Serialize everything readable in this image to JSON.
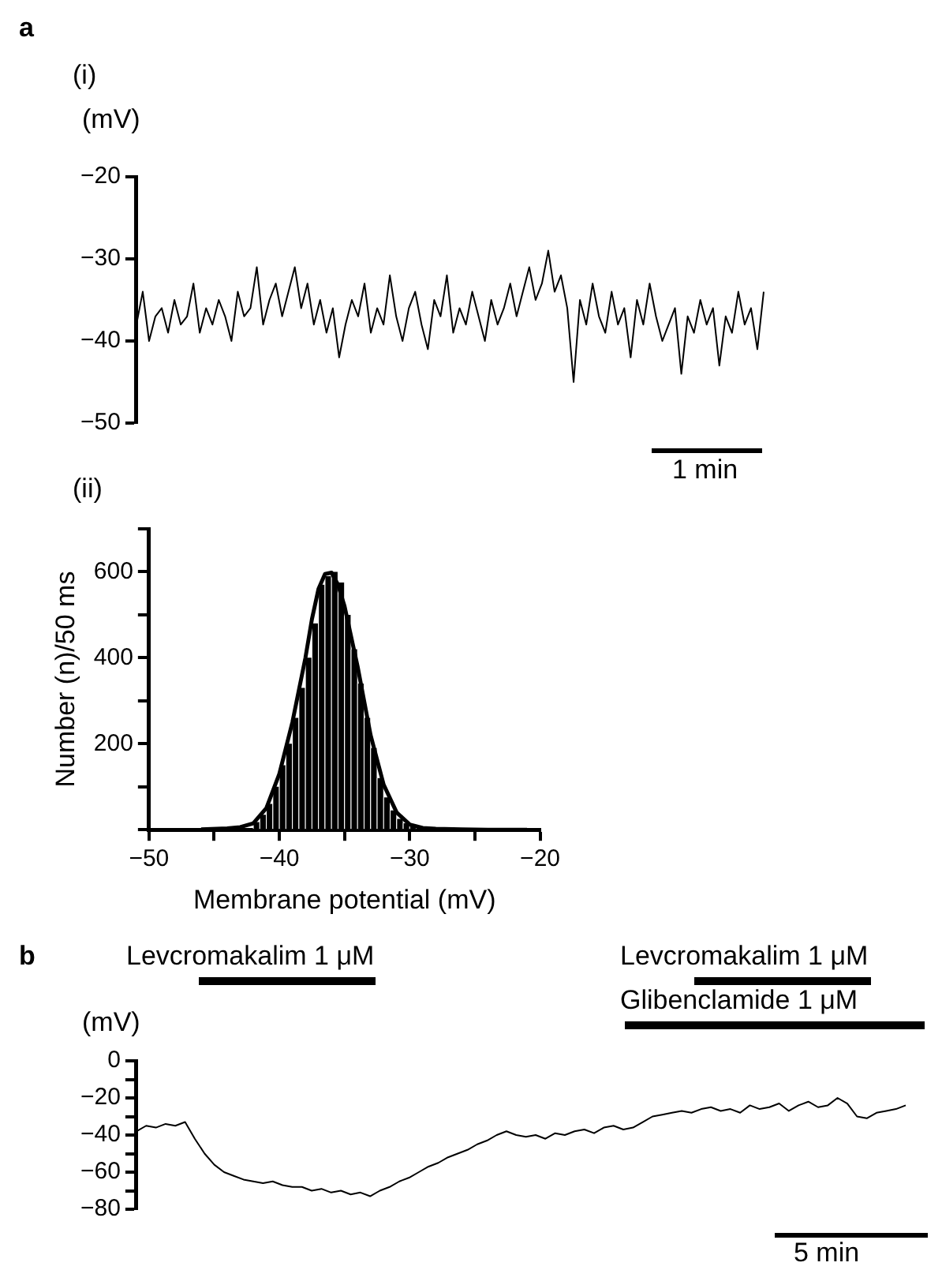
{
  "chart_data": [
    {
      "type": "line",
      "title": "(i)",
      "ylabel": "(mV)",
      "annotations": [
        "a",
        "1 min"
      ],
      "ylim": [
        -50,
        -20
      ],
      "yticks": [
        -20,
        -30,
        -40,
        -50
      ],
      "tick_labels": "y",
      "grid": false,
      "legend": false,
      "marker": "none",
      "categories": [
        null,
        null,
        null,
        null,
        null,
        null,
        null,
        null,
        null,
        null,
        null,
        null,
        null,
        null,
        null,
        null,
        null,
        null,
        null,
        null,
        null,
        null,
        null,
        null,
        null,
        null,
        null,
        null,
        null,
        null,
        null,
        null,
        null,
        null,
        null,
        null,
        null,
        null,
        null,
        null,
        null,
        null,
        null,
        null,
        null,
        null,
        null,
        null,
        null,
        null,
        null,
        null,
        null,
        null,
        null,
        null,
        null,
        null,
        null,
        null,
        null,
        null,
        null,
        null,
        null,
        null,
        null,
        null,
        null,
        null,
        null,
        null,
        null,
        null,
        null,
        null,
        null,
        null,
        null,
        null,
        null,
        null,
        null,
        null,
        null,
        null,
        null,
        null,
        null,
        null,
        null,
        null,
        null,
        null,
        null,
        null,
        null,
        null,
        null,
        null
      ],
      "series": [
        {
          "color": "#000000",
          "values": [
            -38,
            -34,
            -40,
            -37,
            -36,
            -39,
            -35,
            -38,
            -37,
            -33,
            -39,
            -36,
            -38,
            -35,
            -37,
            -40,
            -34,
            -37,
            -36,
            -31,
            -38,
            -35,
            -33,
            -37,
            -34,
            -31,
            -36,
            -33,
            -38,
            -35,
            -39,
            -36,
            -42,
            -38,
            -35,
            -37,
            -33,
            -39,
            -36,
            -38,
            -32,
            -37,
            -40,
            -36,
            -34,
            -38,
            -41,
            -35,
            -37,
            -32,
            -39,
            -36,
            -38,
            -34,
            -37,
            -40,
            -35,
            -38,
            -36,
            -33,
            -37,
            -34,
            -31,
            -35,
            -33,
            -29,
            -34,
            -32,
            -36,
            -45,
            -35,
            -38,
            -33,
            -37,
            -39,
            -34,
            -38,
            -36,
            -42,
            -35,
            -38,
            -33,
            -37,
            -40,
            -38,
            -36,
            -44,
            -37,
            -39,
            -35,
            -38,
            -36,
            -43,
            -37,
            -39,
            -34,
            -38,
            -36,
            -41,
            -34
          ]
        }
      ]
    },
    {
      "type": "histogram",
      "title": "(ii)",
      "xlabel": "Membrane potential (mV)",
      "ylabel": "Number (n)/50 ms",
      "grid": false,
      "legend": false,
      "xlim": [
        -50,
        -20
      ],
      "xticks": [
        -50,
        {
          "value": -45,
          "label": null
        },
        -40,
        {
          "value": -35,
          "label": null
        },
        -30,
        {
          "value": -25,
          "label": null
        },
        -20
      ],
      "ylim": [
        0,
        700
      ],
      "yticks": [
        {
          "value": 0,
          "label": null
        },
        {
          "value": 100,
          "label": null
        },
        200,
        {
          "value": 300,
          "label": null
        },
        400,
        {
          "value": 500,
          "label": null
        },
        600,
        {
          "value": 700,
          "label": null
        }
      ],
      "bins": [
        -46,
        -45.5,
        -45,
        -44.5,
        -44,
        -43.5,
        -43,
        -42.5,
        -42,
        -41.5,
        -41,
        -40.5,
        -40,
        -39.5,
        -39,
        -38.5,
        -38,
        -37.5,
        -37,
        -36.5,
        -36,
        -35.5,
        -35,
        -34.5,
        -34,
        -33.5,
        -33,
        -32.5,
        -32,
        -31.5,
        -31,
        -30.5,
        -30,
        -29.5,
        -29,
        -28.5,
        -28,
        -27.5
      ],
      "series": [
        {
          "type": "histogram",
          "color": "#000000",
          "values": [
            0,
            1,
            2,
            2,
            3,
            null,
            null,
            null,
            18,
            35,
            60,
            100,
            150,
            200,
            260,
            330,
            400,
            480,
            570,
            590,
            600,
            575,
            500,
            420,
            340,
            260,
            190,
            120,
            75,
            45,
            25,
            15,
            8,
            null,
            3,
            2,
            1
          ]
        },
        {
          "type": "line",
          "color": "#000000",
          "x": [
            -46,
            -44,
            -43,
            -42,
            -41,
            -40,
            -39,
            -38,
            -37.5,
            -37,
            -36.5,
            -36,
            -35.5,
            -35,
            -34,
            -33,
            -32,
            -31,
            -30,
            -29,
            -28,
            -26,
            -24,
            -22,
            -21
          ],
          "values": [
            1,
            3,
            6,
            15,
            50,
            130,
            250,
            400,
            490,
            560,
            595,
            598,
            570,
            520,
            380,
            220,
            105,
            40,
            12,
            4,
            2,
            1,
            0,
            0,
            0
          ]
        }
      ]
    },
    {
      "type": "line",
      "ylabel": "(mV)",
      "annotations": [
        "b",
        "Levcromakalim 1 μM",
        "Levcromakalim 1 μM",
        "Glibenclamide 1 μM",
        "5 min"
      ],
      "ylim": [
        -80,
        0
      ],
      "yticks": [
        0,
        {
          "value": -10,
          "label": null
        },
        -20,
        {
          "value": -30,
          "label": null
        },
        -40,
        {
          "value": -50,
          "label": null
        },
        -60,
        {
          "value": -70,
          "label": null
        },
        -80
      ],
      "tick_labels": "y",
      "grid": false,
      "legend": false,
      "marker": "none",
      "categories": [
        null,
        null,
        null,
        null,
        null,
        null,
        null,
        null,
        null,
        null,
        null,
        null,
        null,
        null,
        null,
        null,
        null,
        null,
        null,
        null,
        null,
        null,
        null,
        null,
        null,
        null,
        null,
        null,
        null,
        null,
        null,
        null,
        null,
        null,
        null,
        null,
        null,
        null,
        null,
        null,
        null,
        null,
        null,
        null,
        null,
        null,
        null,
        null,
        null,
        null,
        null,
        null,
        null,
        null,
        null,
        null,
        null,
        null,
        null,
        null,
        null,
        null,
        null,
        null,
        null,
        null,
        null,
        null,
        null,
        null,
        null,
        null,
        null,
        null,
        null,
        null,
        null,
        null,
        null,
        null
      ],
      "series": [
        {
          "color": "#000000",
          "values": [
            -38,
            -35,
            -36,
            -34,
            -35,
            -33,
            -42,
            -50,
            -56,
            -60,
            -62,
            -64,
            -65,
            -66,
            -65,
            -67,
            -68,
            -68,
            -70,
            -69,
            -71,
            -70,
            -72,
            -71,
            -73,
            -70,
            -68,
            -65,
            -63,
            -60,
            -57,
            -55,
            -52,
            -50,
            -48,
            -45,
            -43,
            -40,
            -38,
            -40,
            -41,
            -40,
            -42,
            -39,
            -40,
            -38,
            -37,
            -39,
            -36,
            -35,
            -37,
            -36,
            -33,
            -30,
            -29,
            -28,
            -27,
            -28,
            -26,
            -25,
            -27,
            -26,
            -28,
            -24,
            -26,
            -25,
            -23,
            -27,
            -24,
            -22,
            -25,
            -24,
            -20,
            -23,
            -30,
            -31,
            -28,
            -27,
            -26,
            -24
          ]
        }
      ]
    }
  ]
}
